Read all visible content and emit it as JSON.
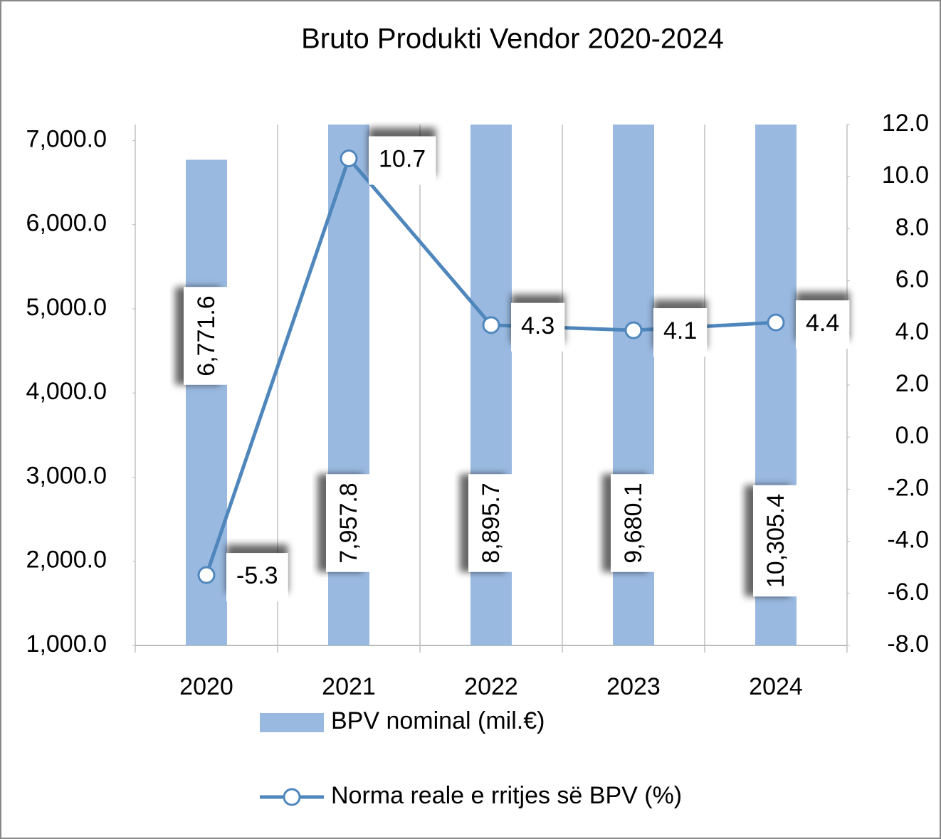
{
  "chart_data": {
    "type": "bar_line",
    "title": "Bruto Produkti Vendor  2020-2024",
    "categories": [
      "2020",
      "2021",
      "2022",
      "2023",
      "2024"
    ],
    "series": [
      {
        "name": "BPV nominal (mil.€)",
        "type": "bar",
        "color": "#9ab9e0",
        "values": [
          6771.6,
          7957.8,
          8895.7,
          9680.1,
          10305.4
        ],
        "value_labels": [
          "6,771.6",
          "7,957.8",
          "8,895.7",
          "9,680.1",
          "10,305.4"
        ]
      },
      {
        "name": "Norma reale e rritjes së BPV (%)",
        "type": "line",
        "axis": "y2",
        "color": "#4f87bd",
        "values": [
          -5.3,
          10.7,
          4.3,
          4.1,
          4.4
        ]
      }
    ],
    "ylim": [
      1000,
      7190
    ],
    "yticks": [
      {
        "value": 1000,
        "label": "1,000.0"
      },
      {
        "value": 2000,
        "label": "2,000.0"
      },
      {
        "value": 3000,
        "label": "3,000.0"
      },
      {
        "value": 4000,
        "label": "4,000.0"
      },
      {
        "value": 5000,
        "label": "5,000.0"
      },
      {
        "value": 6000,
        "label": "6,000.0"
      },
      {
        "value": 7000,
        "label": "7,000.0"
      }
    ],
    "y2lim": [
      -8,
      12
    ],
    "y2ticks": [
      {
        "value": -8,
        "label": "-8.0"
      },
      {
        "value": -6,
        "label": "-6.0"
      },
      {
        "value": -4,
        "label": "-4.0"
      },
      {
        "value": -2,
        "label": "-2.0"
      },
      {
        "value": 0,
        "label": "0.0"
      },
      {
        "value": 2,
        "label": "2.0"
      },
      {
        "value": 4,
        "label": "4.0"
      },
      {
        "value": 6,
        "label": "6.0"
      },
      {
        "value": 8,
        "label": "8.0"
      },
      {
        "value": 10,
        "label": "10.0"
      },
      {
        "value": 12,
        "label": "12.0"
      }
    ],
    "legend": "bottom"
  }
}
